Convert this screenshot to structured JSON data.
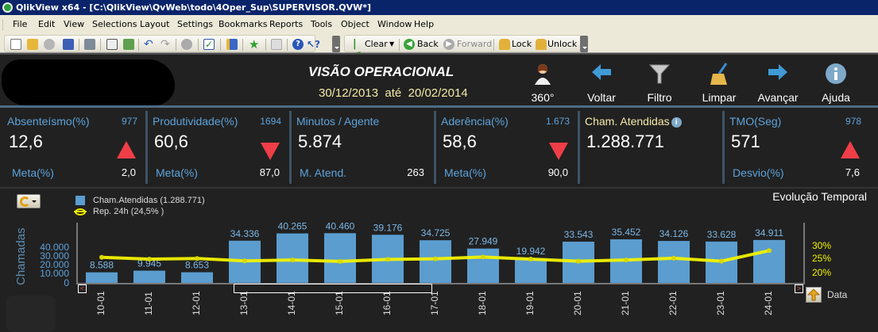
{
  "window": {
    "title": "QlikView x64 - [C:\\QlikView\\QvWeb\\todo\\4Oper_Sup\\SUPERVISOR.QVW*]"
  },
  "menu": [
    "File",
    "Edit",
    "View",
    "Selections",
    "Layout",
    "Settings",
    "Bookmarks",
    "Reports",
    "Tools",
    "Object",
    "Window",
    "Help"
  ],
  "toolbar": {
    "clear_label": "Clear",
    "back_label": "Back",
    "forward_label": "Forward",
    "lock_label": "Lock",
    "unlock_label": "Unlock"
  },
  "header": {
    "title": "VISÃO OPERACIONAL",
    "date_from": "30/12/2013",
    "date_sep": "até",
    "date_to": "20/02/2014",
    "dates_text": "30/12/2013  até  20/02/2014"
  },
  "nav_buttons": [
    {
      "label": "360°",
      "icon": "person-headset-icon"
    },
    {
      "label": "Voltar",
      "icon": "arrow-left-icon"
    },
    {
      "label": "Filtro",
      "icon": "funnel-icon"
    },
    {
      "label": "Limpar",
      "icon": "broom-icon"
    },
    {
      "label": "Avançar",
      "icon": "arrow-right-icon"
    },
    {
      "label": "Ajuda",
      "icon": "info-icon"
    }
  ],
  "kpis": [
    {
      "title": "Absenteísmo(%)",
      "count": "977",
      "value": "12,6",
      "sub_label": "Meta(%)",
      "sub_value": "2,0",
      "indicator": "up"
    },
    {
      "title": "Produtividade(%)",
      "count": "1694",
      "value": "60,6",
      "sub_label": "Meta(%)",
      "sub_value": "87,0",
      "indicator": "down"
    },
    {
      "title": "Minutos / Agente",
      "count": "",
      "value": "5.874",
      "sub_label": "M. Atend.",
      "sub_value": "263",
      "indicator": ""
    },
    {
      "title": "Aderência(%)",
      "count": "1.673",
      "value": "58,6",
      "sub_label": "Meta(%)",
      "sub_value": "90,0",
      "indicator": "down"
    },
    {
      "title": "Cham. Atendidas",
      "count": "",
      "value": "1.288.771",
      "sub_label": "",
      "sub_value": "",
      "indicator": ""
    },
    {
      "title": "TMO(Seg)",
      "count": "978",
      "value": "571",
      "sub_label": "Desvio(%)",
      "sub_value": "7,6",
      "indicator": "up"
    }
  ],
  "chart": {
    "title": "Evolução Temporal",
    "legend_bar": "Cham.Atendidas (1.288.771)",
    "legend_line": "Rep. 24h (24,5% )",
    "y_title": "Chamadas",
    "y_ticks": [
      "40.000",
      "30.000",
      "20.000",
      "10.000",
      "0"
    ],
    "y2_ticks": [
      "30%",
      "25%",
      "20%"
    ],
    "sort_label": "Data",
    "bar_color": "#5b9dcf",
    "line_color": "#f2f200"
  },
  "chart_data": {
    "type": "bar",
    "title": "Evolução Temporal",
    "xlabel": "Data",
    "ylabel": "Chamadas",
    "ylim": [
      0,
      40000
    ],
    "y2lim": [
      20,
      30
    ],
    "categories": [
      "10-01",
      "11-01",
      "12-01",
      "13-01",
      "14-01",
      "15-01",
      "16-01",
      "17-01",
      "18-01",
      "19-01",
      "20-01",
      "21-01",
      "22-01",
      "23-01",
      "24-01"
    ],
    "series": [
      {
        "name": "Cham.Atendidas (1.288.771)",
        "type": "bar",
        "axis": "left",
        "values": [
          8588,
          9945,
          8653,
          34336,
          40265,
          40460,
          39176,
          34725,
          27949,
          19942,
          33543,
          35452,
          34126,
          33628,
          34911
        ],
        "labels": [
          "8.588",
          "9.945",
          "8.653",
          "34.336",
          "40.265",
          "40.460",
          "39.176",
          "34.725",
          "27.949",
          "19.942",
          "33.543",
          "35.452",
          "34.126",
          "33.628",
          "34.911"
        ]
      },
      {
        "name": "Rep. 24h (24,5% )",
        "type": "line",
        "axis": "right",
        "unit": "%",
        "values": [
          25.2,
          24.6,
          24.8,
          24.0,
          24.3,
          23.8,
          24.5,
          24.7,
          25.3,
          24.6,
          23.9,
          24.3,
          24.9,
          23.9,
          27.5
        ]
      }
    ],
    "legend_position": "top-left",
    "grid": false
  }
}
